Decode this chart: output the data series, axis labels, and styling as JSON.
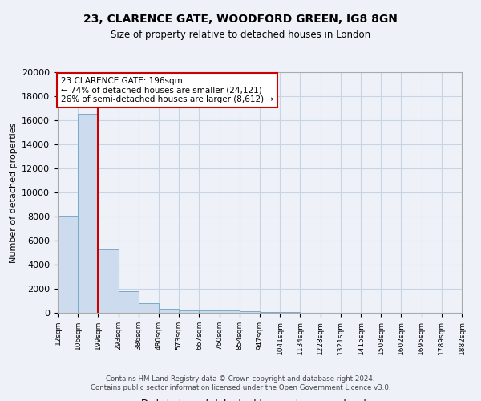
{
  "title": "23, CLARENCE GATE, WOODFORD GREEN, IG8 8GN",
  "subtitle": "Size of property relative to detached houses in London",
  "xlabel": "Distribution of detached houses by size in London",
  "ylabel": "Number of detached properties",
  "bin_labels": [
    "12sqm",
    "106sqm",
    "199sqm",
    "293sqm",
    "386sqm",
    "480sqm",
    "573sqm",
    "667sqm",
    "760sqm",
    "854sqm",
    "947sqm",
    "1041sqm",
    "1134sqm",
    "1228sqm",
    "1321sqm",
    "1415sqm",
    "1508sqm",
    "1602sqm",
    "1695sqm",
    "1789sqm",
    "1882sqm"
  ],
  "bar_heights": [
    8100,
    16500,
    5300,
    1800,
    800,
    350,
    230,
    170,
    170,
    130,
    60,
    40,
    30,
    20,
    15,
    10,
    8,
    5,
    4,
    3
  ],
  "bar_color": "#ccdcee",
  "bar_edge_color": "#7aaac8",
  "grid_color": "#c8d4e4",
  "background_color": "#eef2f8",
  "vline_x_index": 2,
  "vline_color": "#cc0000",
  "annotation_text": "23 CLARENCE GATE: 196sqm\n← 74% of detached houses are smaller (24,121)\n26% of semi-detached houses are larger (8,612) →",
  "annotation_box_color": "#ffffff",
  "annotation_box_edge": "#cc0000",
  "ylim": [
    0,
    20000
  ],
  "yticks": [
    0,
    2000,
    4000,
    6000,
    8000,
    10000,
    12000,
    14000,
    16000,
    18000,
    20000
  ],
  "footer_line1": "Contains HM Land Registry data © Crown copyright and database right 2024.",
  "footer_line2": "Contains public sector information licensed under the Open Government Licence v3.0."
}
